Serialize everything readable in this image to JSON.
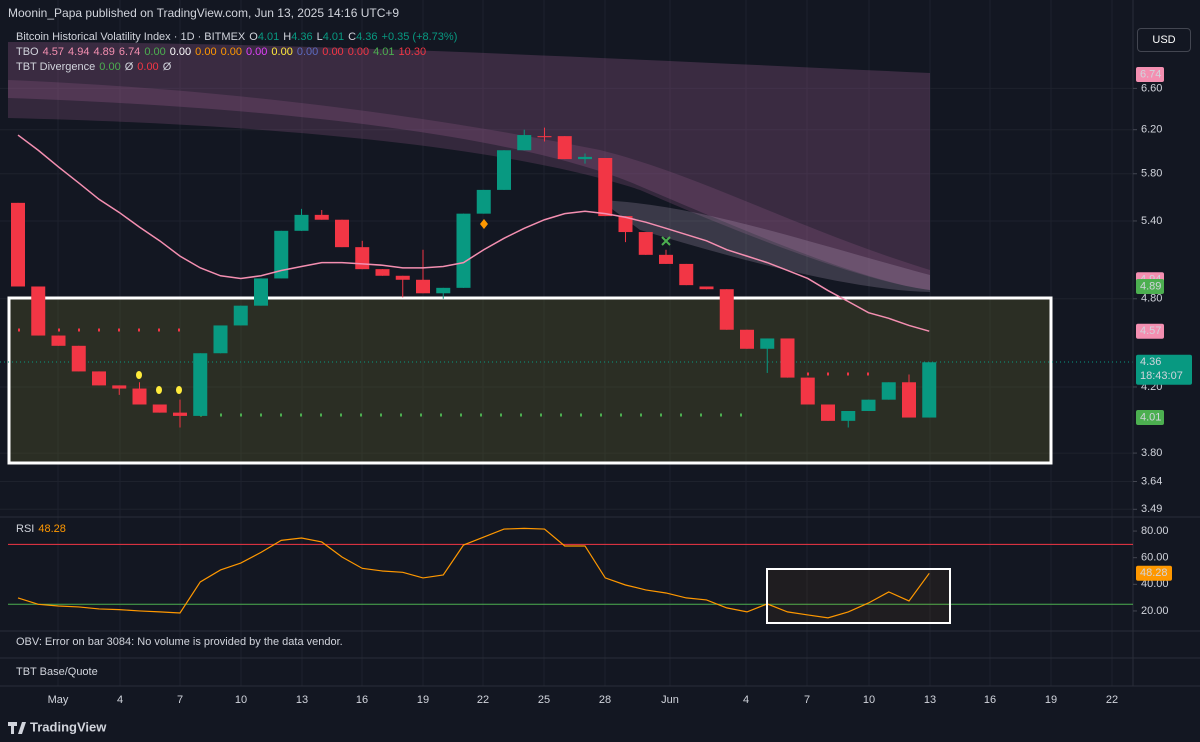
{
  "publisher": "Moonin_Papa published on TradingView.com, Jun 13, 2025 14:16 UTC+9",
  "legend": {
    "symbol": "Bitcoin Historical Volatility Index · 1D · BITMEX",
    "ohlc": [
      {
        "key": "O",
        "value": "4.01"
      },
      {
        "key": "H",
        "value": "4.36"
      },
      {
        "key": "L",
        "value": "4.01"
      },
      {
        "key": "C",
        "value": "4.36"
      }
    ],
    "change": "+0.35 (+8.73%)",
    "tbo": {
      "name": "TBO",
      "values": [
        {
          "text": "4.57",
          "color": "#f48fb1"
        },
        {
          "text": "4.94",
          "color": "#f48fb1"
        },
        {
          "text": "4.89",
          "color": "#f48fb1"
        },
        {
          "text": "6.74",
          "color": "#f48fb1"
        },
        {
          "text": "0.00",
          "color": "#4caf50"
        },
        {
          "text": "0.00",
          "color": "#ffffff"
        },
        {
          "text": "0.00",
          "color": "#ff9800"
        },
        {
          "text": "0.00",
          "color": "#ff9800"
        },
        {
          "text": "0.00",
          "color": "#e040fb"
        },
        {
          "text": "0.00",
          "color": "#ffeb3b"
        },
        {
          "text": "0.00",
          "color": "#5c6bc0"
        },
        {
          "text": "0.00",
          "color": "#f23645"
        },
        {
          "text": "0.00",
          "color": "#f23645"
        },
        {
          "text": "4.01",
          "color": "#4caf50"
        },
        {
          "text": "10.30",
          "color": "#f23645"
        }
      ]
    },
    "divergence": {
      "name": "TBT Divergence",
      "values": [
        {
          "text": "0.00",
          "color": "#4caf50"
        },
        {
          "text": "Ø",
          "color": "#d1d4dc"
        },
        {
          "text": "0.00",
          "color": "#f23645"
        },
        {
          "text": "Ø",
          "color": "#d1d4dc"
        }
      ]
    }
  },
  "currency": "USD",
  "chart_data": {
    "type": "candlestick",
    "log_scale": true,
    "ylim": [
      3.46,
      7.21
    ],
    "yticks": [
      {
        "value": 6.6,
        "label": "6.60"
      },
      {
        "value": 6.2,
        "label": "6.20"
      },
      {
        "value": 5.8,
        "label": "5.80"
      },
      {
        "value": 5.4,
        "label": "5.40"
      },
      {
        "value": 4.8,
        "label": "4.80"
      },
      {
        "value": 4.2,
        "label": "4.20"
      },
      {
        "value": 3.8,
        "label": "3.80"
      },
      {
        "value": 3.64,
        "label": "3.64"
      },
      {
        "value": 3.49,
        "label": "3.49"
      }
    ],
    "grid": true,
    "up_color": "#089981",
    "down_color": "#f23645",
    "open": [
      5.55,
      4.89,
      4.54,
      4.47,
      4.3,
      4.21,
      4.19,
      4.09,
      4.04,
      4.02,
      4.42,
      4.61,
      4.75,
      4.95,
      5.32,
      5.45,
      5.41,
      5.19,
      5.02,
      4.97,
      4.94,
      4.84,
      4.88,
      5.46,
      5.66,
      6.01,
      6.14,
      6.14,
      5.93,
      5.94,
      5.44,
      5.31,
      5.13,
      5.06,
      4.89,
      4.87,
      4.58,
      4.45,
      4.52,
      4.26,
      4.09,
      3.99,
      4.05,
      4.12,
      4.23,
      4.01
    ],
    "high": [
      5.55,
      4.89,
      4.54,
      4.47,
      4.3,
      4.21,
      4.23,
      4.09,
      4.12,
      4.42,
      4.61,
      4.75,
      4.95,
      5.32,
      5.5,
      5.49,
      5.41,
      5.24,
      5.02,
      4.97,
      5.17,
      4.88,
      5.46,
      5.66,
      6.01,
      6.2,
      6.22,
      6.14,
      5.98,
      5.94,
      5.44,
      5.31,
      5.17,
      5.06,
      4.89,
      4.87,
      4.58,
      4.52,
      4.52,
      4.26,
      4.09,
      4.05,
      4.12,
      4.23,
      4.28,
      4.36
    ],
    "low": [
      4.89,
      4.54,
      4.47,
      4.3,
      4.21,
      4.15,
      4.09,
      4.04,
      3.95,
      4.02,
      4.42,
      4.61,
      4.75,
      4.95,
      5.32,
      5.41,
      5.19,
      5.02,
      4.97,
      4.81,
      4.84,
      4.8,
      4.88,
      5.46,
      5.66,
      6.01,
      6.09,
      5.93,
      5.89,
      5.44,
      5.23,
      5.13,
      5.06,
      4.9,
      4.87,
      4.58,
      4.45,
      4.29,
      4.26,
      4.09,
      3.99,
      3.95,
      4.05,
      4.12,
      4.01,
      4.01
    ],
    "close": [
      4.89,
      4.54,
      4.47,
      4.3,
      4.21,
      4.19,
      4.09,
      4.04,
      4.02,
      4.42,
      4.61,
      4.75,
      4.95,
      5.32,
      5.45,
      5.41,
      5.19,
      5.02,
      4.97,
      4.94,
      4.84,
      4.88,
      5.46,
      5.66,
      6.01,
      6.15,
      6.13,
      5.93,
      5.95,
      5.44,
      5.31,
      5.13,
      5.06,
      4.9,
      4.87,
      4.58,
      4.45,
      4.52,
      4.26,
      4.09,
      3.99,
      4.05,
      4.12,
      4.23,
      4.01,
      4.36
    ],
    "ma": {
      "color": "#f48fb1",
      "values": [
        6.15,
        6.01,
        5.86,
        5.72,
        5.58,
        5.47,
        5.35,
        5.24,
        5.12,
        5.03,
        4.97,
        4.95,
        4.97,
        5.01,
        5.04,
        5.07,
        5.07,
        5.06,
        5.05,
        5.03,
        5.03,
        5.04,
        5.07,
        5.17,
        5.26,
        5.34,
        5.41,
        5.46,
        5.48,
        5.46,
        5.43,
        5.39,
        5.34,
        5.29,
        5.24,
        5.17,
        5.12,
        5.07,
        5.01,
        4.95,
        4.86,
        4.78,
        4.7,
        4.66,
        4.61,
        4.57
      ]
    },
    "price_labels": [
      {
        "value": 6.74,
        "label": "6.74",
        "color": "#f48fb1"
      },
      {
        "value": 4.94,
        "label": "4.94",
        "color": "#f48fb1"
      },
      {
        "value": 4.89,
        "label": "4.89",
        "color": "#4caf50"
      },
      {
        "value": 4.57,
        "label": "4.57",
        "color": "#f48fb1"
      },
      {
        "value": 4.36,
        "label": "4.36",
        "color": "#089981"
      },
      {
        "value": 4.01,
        "label": "4.01",
        "color": "#4caf50"
      }
    ],
    "countdown": "18:43:07",
    "x_labels": [
      "May",
      "4",
      "7",
      "10",
      "13",
      "16",
      "19",
      "22",
      "25",
      "28",
      "Jun",
      "4",
      "7",
      "10",
      "13",
      "16",
      "19",
      "22"
    ]
  },
  "rsi": {
    "type": "line",
    "name": "RSI",
    "last_label": "48.28",
    "color": "#ff9800",
    "values": [
      29.8,
      25.0,
      23.7,
      23,
      21.5,
      21,
      20,
      19.3,
      18.5,
      41.8,
      50.8,
      56,
      64,
      73,
      74.8,
      71.8,
      60.5,
      52,
      50,
      49,
      44.8,
      47,
      69.5,
      75.5,
      81.5,
      82,
      81.5,
      68.8,
      68.8,
      44.8,
      39.5,
      35.8,
      33.5,
      29.8,
      28.3,
      22.3,
      19.3,
      25.3,
      19.3,
      17,
      14.8,
      19.3,
      26,
      34.3,
      27.5,
      48.28
    ],
    "ylim": [
      5.7,
      89.8
    ],
    "yticks": [
      {
        "value": 80,
        "label": "80.00"
      },
      {
        "value": 60,
        "label": "60.00"
      },
      {
        "value": 40,
        "label": "40.00"
      },
      {
        "value": 20,
        "label": "20.00"
      }
    ],
    "levels": [
      {
        "value": 70,
        "color": "#f23645"
      },
      {
        "value": 25,
        "color": "#4caf50"
      }
    ]
  },
  "obv": "OBV: Error on bar 3084: No volume is provided by the data vendor.",
  "base_quote": "TBT Base/Quote",
  "brand": "TradingView"
}
